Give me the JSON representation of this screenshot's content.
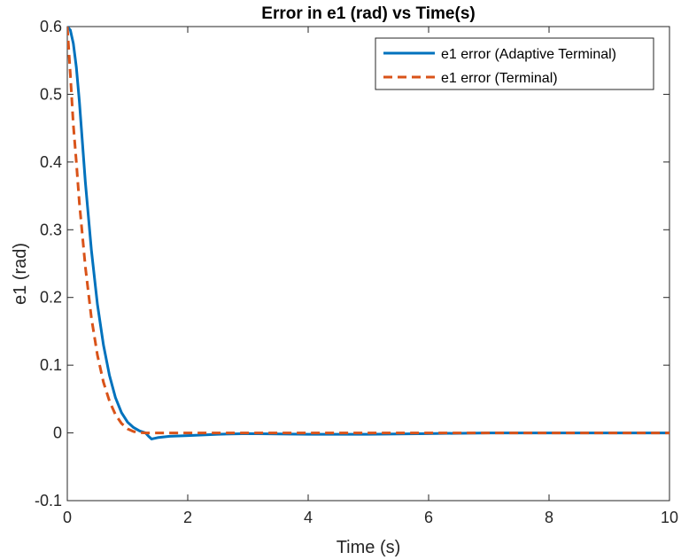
{
  "chart_data": {
    "type": "line",
    "title": "Error in e1 (rad) vs Time(s)",
    "xlabel": "Time (s)",
    "ylabel": "e1 (rad)",
    "xlim": [
      0,
      10
    ],
    "ylim": [
      -0.1,
      0.6
    ],
    "xticks": [
      0,
      2,
      4,
      6,
      8,
      10
    ],
    "yticks": [
      -0.1,
      0,
      0.1,
      0.2,
      0.3,
      0.4,
      0.5,
      0.6
    ],
    "xtick_labels": [
      "0",
      "2",
      "4",
      "6",
      "8",
      "10"
    ],
    "ytick_labels": [
      "-0.1",
      "0",
      "0.1",
      "0.2",
      "0.3",
      "0.4",
      "0.5",
      "0.6"
    ],
    "grid": false,
    "legend_position": "top-right",
    "series": [
      {
        "name": "e1 error (Adaptive Terminal)",
        "color": "#0072BD",
        "style": "solid",
        "x": [
          0,
          0.05,
          0.1,
          0.15,
          0.2,
          0.3,
          0.4,
          0.5,
          0.6,
          0.7,
          0.8,
          0.9,
          1.0,
          1.1,
          1.2,
          1.3,
          1.35,
          1.4,
          1.5,
          1.7,
          2.0,
          2.5,
          3.0,
          3.5,
          4.0,
          5.0,
          6.0,
          7.0,
          8.0,
          9.0,
          10.0
        ],
        "y": [
          0.6,
          0.595,
          0.575,
          0.54,
          0.49,
          0.37,
          0.27,
          0.19,
          0.13,
          0.085,
          0.052,
          0.03,
          0.016,
          0.008,
          0.003,
          0.0,
          -0.005,
          -0.009,
          -0.007,
          -0.005,
          -0.004,
          -0.002,
          -0.001,
          -0.0015,
          -0.002,
          -0.002,
          -0.001,
          0.0,
          0.0,
          0.0,
          0.0
        ]
      },
      {
        "name": "e1 error (Terminal)",
        "color": "#D95319",
        "style": "dashed",
        "x": [
          0,
          0.05,
          0.1,
          0.15,
          0.2,
          0.3,
          0.4,
          0.5,
          0.6,
          0.7,
          0.8,
          0.9,
          1.0,
          1.1,
          1.2,
          1.3,
          1.4,
          2.0,
          3.0,
          4.0,
          5.0,
          6.0,
          7.0,
          8.0,
          9.0,
          10.0
        ],
        "y": [
          0.6,
          0.53,
          0.455,
          0.4,
          0.34,
          0.245,
          0.17,
          0.115,
          0.075,
          0.047,
          0.027,
          0.014,
          0.006,
          0.002,
          0.0005,
          0.0,
          0.0,
          0.0,
          0.0,
          0.0,
          0.0,
          0.0,
          0.0,
          0.0,
          0.0,
          0.0
        ]
      }
    ]
  }
}
